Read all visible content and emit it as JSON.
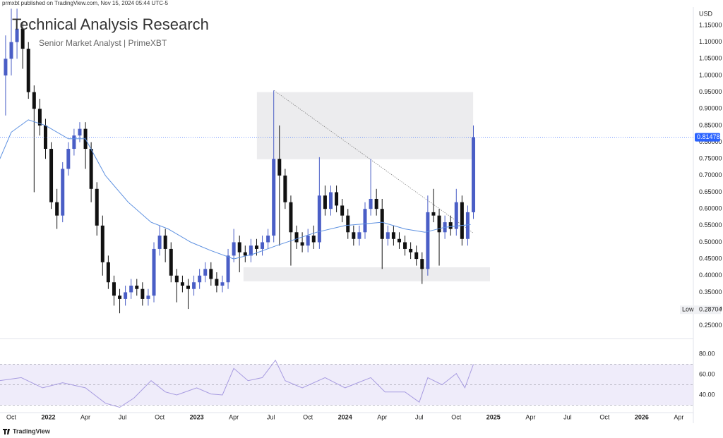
{
  "header": {
    "published": "prmxbt published on TradingView.com, Nov 15, 2024 05:44 UTC-5",
    "title": "Technical Analysis Research",
    "subtitle": "Senior Market Analyst | PrimeXBT"
  },
  "chart_data": {
    "type": "candlestick",
    "currency": "USD",
    "low_label": "Low",
    "colors": {
      "up": "#4a5ec6",
      "down": "#111111",
      "ma": "#5b8fe0",
      "zone": "#ececee",
      "last": "#2962ff",
      "indicator": "#a79be0",
      "band": "#efecfa"
    },
    "x": [
      -2,
      0,
      2,
      4,
      6,
      8,
      10,
      12,
      14,
      16,
      18,
      20,
      22,
      24,
      26,
      28,
      30,
      32,
      34,
      36,
      38,
      40,
      42,
      44,
      46,
      48,
      50,
      52,
      54,
      56,
      58,
      60,
      62,
      64,
      66,
      68,
      70,
      72,
      74,
      76,
      78,
      80,
      82,
      84,
      86,
      88,
      90,
      92,
      94,
      96,
      98,
      100,
      102,
      104,
      106,
      108,
      110,
      112,
      114,
      116,
      118,
      120,
      122,
      124,
      126,
      128,
      130,
      132,
      134,
      136,
      138,
      140,
      142,
      144,
      146,
      148,
      150,
      152,
      154,
      156,
      158,
      160,
      162
    ],
    "open": [
      1.0,
      1.05,
      1.1,
      1.14,
      1.08,
      0.95,
      0.9,
      0.85,
      0.78,
      0.62,
      0.58,
      0.72,
      0.78,
      0.82,
      0.84,
      0.78,
      0.66,
      0.55,
      0.44,
      0.38,
      0.34,
      0.33,
      0.35,
      0.37,
      0.36,
      0.33,
      0.34,
      0.48,
      0.52,
      0.48,
      0.4,
      0.38,
      0.37,
      0.36,
      0.38,
      0.4,
      0.42,
      0.39,
      0.37,
      0.38,
      0.46,
      0.5,
      0.47,
      0.46,
      0.49,
      0.48,
      0.5,
      0.52,
      0.75,
      0.7,
      0.62,
      0.53,
      0.5,
      0.49,
      0.52,
      0.5,
      0.64,
      0.6,
      0.65,
      0.61,
      0.58,
      0.53,
      0.51,
      0.53,
      0.6,
      0.63,
      0.6,
      0.51,
      0.53,
      0.51,
      0.5,
      0.48,
      0.47,
      0.45,
      0.42,
      0.59,
      0.58,
      0.53,
      0.56,
      0.54,
      0.62,
      0.51,
      0.59
    ],
    "high": [
      1.12,
      1.2,
      1.2,
      1.16,
      1.1,
      0.97,
      0.93,
      0.87,
      0.8,
      0.66,
      0.74,
      0.8,
      0.84,
      0.86,
      0.86,
      0.8,
      0.68,
      0.58,
      0.46,
      0.4,
      0.36,
      0.37,
      0.39,
      0.39,
      0.38,
      0.36,
      0.5,
      0.55,
      0.54,
      0.5,
      0.42,
      0.4,
      0.39,
      0.4,
      0.42,
      0.44,
      0.44,
      0.41,
      0.4,
      0.48,
      0.54,
      0.52,
      0.49,
      0.51,
      0.51,
      0.52,
      0.54,
      0.955,
      0.85,
      0.72,
      0.64,
      0.55,
      0.53,
      0.54,
      0.55,
      0.755,
      0.67,
      0.67,
      0.67,
      0.63,
      0.6,
      0.55,
      0.55,
      0.62,
      0.75,
      0.66,
      0.63,
      0.55,
      0.55,
      0.53,
      0.52,
      0.5,
      0.49,
      0.47,
      0.64,
      0.66,
      0.6,
      0.58,
      0.58,
      0.66,
      0.64,
      0.61,
      0.85
    ],
    "low": [
      0.88,
      1.0,
      1.05,
      1.02,
      0.93,
      0.65,
      0.82,
      0.75,
      0.6,
      0.54,
      0.56,
      0.7,
      0.76,
      0.8,
      0.72,
      0.62,
      0.52,
      0.4,
      0.36,
      0.31,
      0.28704,
      0.31,
      0.33,
      0.34,
      0.31,
      0.31,
      0.32,
      0.46,
      0.44,
      0.38,
      0.32,
      0.35,
      0.3,
      0.34,
      0.36,
      0.38,
      0.37,
      0.35,
      0.35,
      0.36,
      0.44,
      0.41,
      0.44,
      0.44,
      0.46,
      0.46,
      0.48,
      0.5,
      0.49,
      0.6,
      0.43,
      0.48,
      0.47,
      0.47,
      0.48,
      0.48,
      0.58,
      0.58,
      0.59,
      0.56,
      0.51,
      0.49,
      0.49,
      0.51,
      0.58,
      0.58,
      0.42,
      0.49,
      0.49,
      0.48,
      0.46,
      0.45,
      0.43,
      0.375,
      0.4,
      0.56,
      0.43,
      0.51,
      0.52,
      0.52,
      0.49,
      0.49,
      0.57
    ],
    "close": [
      1.05,
      1.1,
      1.14,
      1.08,
      0.95,
      0.9,
      0.85,
      0.78,
      0.62,
      0.58,
      0.72,
      0.78,
      0.82,
      0.84,
      0.78,
      0.66,
      0.55,
      0.44,
      0.38,
      0.34,
      0.33,
      0.35,
      0.37,
      0.36,
      0.33,
      0.34,
      0.48,
      0.52,
      0.48,
      0.4,
      0.38,
      0.37,
      0.36,
      0.38,
      0.4,
      0.42,
      0.39,
      0.37,
      0.38,
      0.46,
      0.5,
      0.47,
      0.46,
      0.49,
      0.48,
      0.5,
      0.52,
      0.75,
      0.7,
      0.62,
      0.53,
      0.5,
      0.49,
      0.52,
      0.5,
      0.64,
      0.6,
      0.65,
      0.61,
      0.58,
      0.53,
      0.51,
      0.53,
      0.6,
      0.63,
      0.6,
      0.51,
      0.53,
      0.51,
      0.5,
      0.48,
      0.47,
      0.45,
      0.42,
      0.59,
      0.58,
      0.53,
      0.56,
      0.54,
      0.62,
      0.51,
      0.59,
      0.81478
    ],
    "xlim": [
      -3.96,
      238.6
    ],
    "xticks": [
      {
        "value": 0,
        "label": "Oct"
      },
      {
        "value": 13,
        "label": "2022"
      },
      {
        "value": 26,
        "label": "Apr"
      },
      {
        "value": 39,
        "label": "Jul"
      },
      {
        "value": 52,
        "label": "Oct"
      },
      {
        "value": 65,
        "label": "2023"
      },
      {
        "value": 78,
        "label": "Apr"
      },
      {
        "value": 91,
        "label": "Jul"
      },
      {
        "value": 104,
        "label": "Oct"
      },
      {
        "value": 117,
        "label": "2024"
      },
      {
        "value": 130,
        "label": "Apr"
      },
      {
        "value": 143,
        "label": "Jul"
      },
      {
        "value": 156,
        "label": "Oct"
      },
      {
        "value": 169,
        "label": "2025"
      },
      {
        "value": 182,
        "label": "Apr"
      },
      {
        "value": 195,
        "label": "Jul"
      },
      {
        "value": 208,
        "label": "Oct"
      },
      {
        "value": 221,
        "label": "2026"
      },
      {
        "value": 234,
        "label": "Apr"
      }
    ],
    "ylim": [
      0.2156,
      1.205
    ],
    "yticks": [
      {
        "value": 1.15,
        "label": "1.15000"
      },
      {
        "value": 1.1,
        "label": "1.10000"
      },
      {
        "value": 1.05,
        "label": "1.05000"
      },
      {
        "value": 1.0,
        "label": "1.00000"
      },
      {
        "value": 0.95,
        "label": "0.95000"
      },
      {
        "value": 0.9,
        "label": "0.90000"
      },
      {
        "value": 0.85,
        "label": "0.85000"
      },
      {
        "value": 0.8,
        "label": "0.80000"
      },
      {
        "value": 0.75,
        "label": "0.75000"
      },
      {
        "value": 0.7,
        "label": "0.70000"
      },
      {
        "value": 0.65,
        "label": "0.65000"
      },
      {
        "value": 0.6,
        "label": "0.60000"
      },
      {
        "value": 0.55,
        "label": "0.55000"
      },
      {
        "value": 0.5,
        "label": "0.50000"
      },
      {
        "value": 0.45,
        "label": "0.45000"
      },
      {
        "value": 0.4,
        "label": "0.40000"
      },
      {
        "value": 0.35,
        "label": "0.35000"
      },
      {
        "value": 0.3,
        "label": "0.30000"
      },
      {
        "value": 0.25,
        "label": "0.25000"
      }
    ],
    "ma": {
      "x": [
        -4,
        0,
        6,
        12,
        20,
        26,
        33,
        41,
        49,
        55,
        63,
        70,
        78,
        85,
        93,
        100,
        107,
        117,
        130,
        138,
        145,
        152,
        161
      ],
      "values": [
        0.75,
        0.83,
        0.867,
        0.85,
        0.81,
        0.81,
        0.7,
        0.62,
        0.56,
        0.54,
        0.5,
        0.475,
        0.45,
        0.465,
        0.49,
        0.51,
        0.53,
        0.55,
        0.56,
        0.54,
        0.53,
        0.545,
        0.553
      ]
    },
    "zones": [
      {
        "x": [
          86.1,
          161.9
        ],
        "y": [
          0.749,
          0.95
        ]
      },
      {
        "x": [
          81.4,
          167.8
        ],
        "y": [
          0.383,
          0.425
        ]
      }
    ],
    "trendline": {
      "x": [
        92.1,
        161.9
      ],
      "y": [
        0.955,
        0.528
      ]
    },
    "indicator": {
      "type": "line",
      "x": [
        -4,
        3.5,
        11,
        18,
        26,
        33,
        38,
        43,
        49,
        54,
        58,
        65,
        70,
        74,
        78,
        83,
        88,
        92.6,
        96,
        102,
        110,
        117,
        126,
        131,
        138,
        143,
        146,
        151,
        156,
        159,
        162
      ],
      "values": [
        54,
        57,
        47,
        52,
        47,
        32,
        28,
        37,
        54,
        43,
        40,
        47,
        41,
        40,
        66,
        54,
        57,
        74,
        54,
        47,
        57,
        47,
        57,
        43,
        43,
        33,
        57,
        50,
        61,
        47,
        70
      ],
      "ylim": [
        22.8,
        93.8
      ],
      "yticks": [
        {
          "value": 80,
          "label": "80.00"
        },
        {
          "value": 60,
          "label": "60.00"
        },
        {
          "value": 40,
          "label": "40.00"
        }
      ],
      "band": [
        30,
        70
      ],
      "mid": 50
    }
  },
  "footer": {
    "brand": "TradingView"
  }
}
